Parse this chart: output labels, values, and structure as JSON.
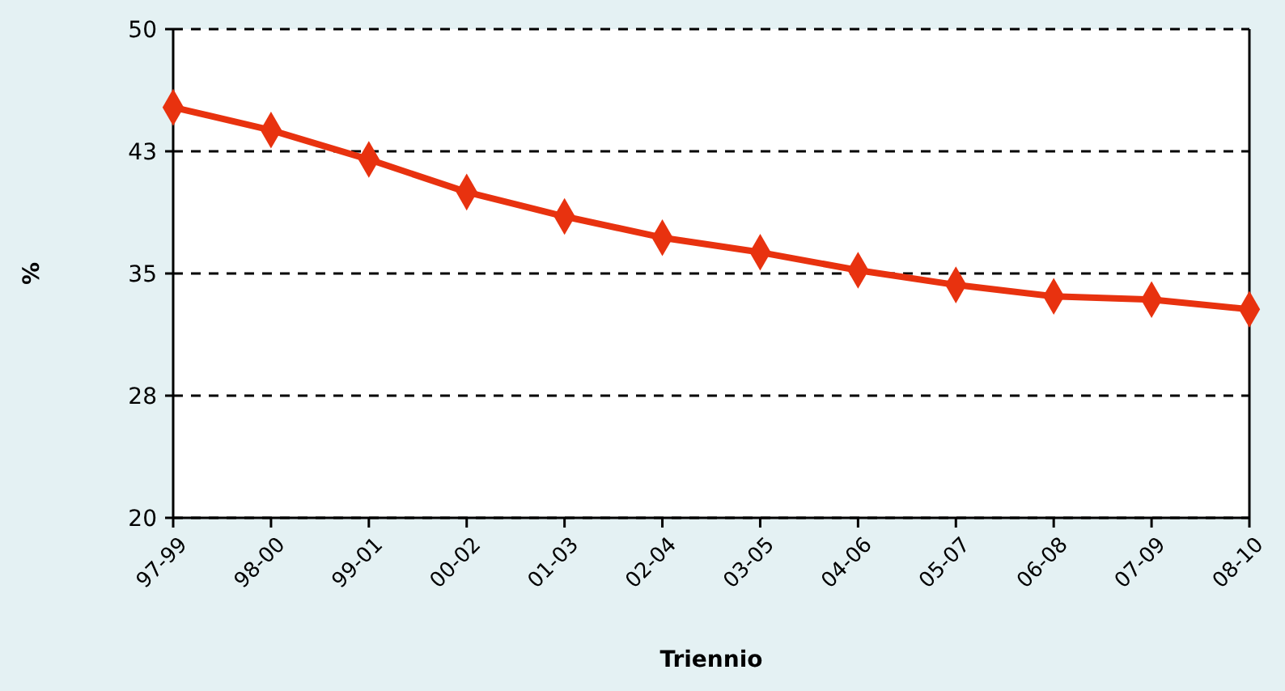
{
  "chart_data": {
    "type": "line",
    "xlabel": "Triennio",
    "ylabel": "%",
    "categories": [
      "97-99",
      "98-00",
      "99-01",
      "00-02",
      "01-03",
      "02-04",
      "03-05",
      "04-06",
      "05-07",
      "06-08",
      "07-09",
      "08-10"
    ],
    "series": [
      {
        "color": "#e8320f",
        "values": [
          45.2,
          43.8,
          42.0,
          40.0,
          38.5,
          37.2,
          36.3,
          35.2,
          34.3,
          33.6,
          33.4,
          32.8
        ]
      }
    ],
    "ylim": [
      20,
      50
    ],
    "yticks": [
      20,
      {
        "value": 27.5,
        "label": "28"
      },
      35,
      {
        "value": 42.5,
        "label": "43"
      },
      50
    ],
    "grid": "y",
    "marker": "diamond",
    "line_style": "solid"
  }
}
